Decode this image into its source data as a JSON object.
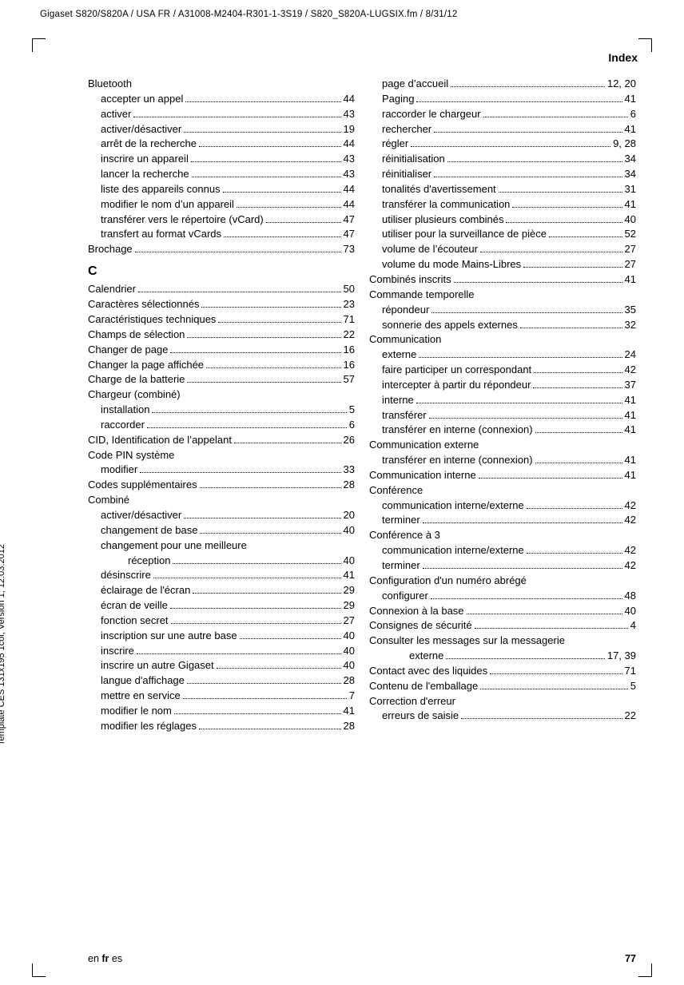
{
  "header": "Gigaset S820/S820A / USA FR / A31008-M2404-R301-1-3S19 / S820_S820A-LUGSIX.fm / 8/31/12",
  "section_title": "Index",
  "spine": "Template CES 131x195 1col, Version 1, 12.03.2012",
  "footer_lang_pre": "en ",
  "footer_lang_bold": "fr",
  "footer_lang_post": " es",
  "footer_page": "77",
  "rows": [
    {
      "kind": "noleader",
      "indent": 0,
      "label": "Bluetooth"
    },
    {
      "kind": "row",
      "indent": 1,
      "label": "accepter un appel",
      "page": "44"
    },
    {
      "kind": "row",
      "indent": 1,
      "label": "activer",
      "page": "43"
    },
    {
      "kind": "row",
      "indent": 1,
      "label": "activer/désactiver",
      "page": "19"
    },
    {
      "kind": "row",
      "indent": 1,
      "label": "arrêt de la recherche",
      "page": "44"
    },
    {
      "kind": "row",
      "indent": 1,
      "label": "inscrire un appareil",
      "page": "43"
    },
    {
      "kind": "row",
      "indent": 1,
      "label": "lancer la recherche",
      "page": "43"
    },
    {
      "kind": "row",
      "indent": 1,
      "label": "liste des appareils connus",
      "page": "44"
    },
    {
      "kind": "row",
      "indent": 1,
      "label": "modifier le nom d’un appareil",
      "page": "44"
    },
    {
      "kind": "row",
      "indent": 1,
      "label": "transférer vers le répertoire (vCard)",
      "page": "47"
    },
    {
      "kind": "row",
      "indent": 1,
      "label": "transfert au format vCards",
      "page": "47"
    },
    {
      "kind": "row",
      "indent": 0,
      "label": "Brochage",
      "page": "73"
    },
    {
      "kind": "letter",
      "label": "C"
    },
    {
      "kind": "row",
      "indent": 0,
      "label": "Calendrier",
      "page": "50"
    },
    {
      "kind": "row",
      "indent": 0,
      "label": "Caractères sélectionnés",
      "page": "23"
    },
    {
      "kind": "row",
      "indent": 0,
      "label": "Caractéristiques techniques",
      "page": "71"
    },
    {
      "kind": "row",
      "indent": 0,
      "label": "Champs de sélection",
      "page": "22"
    },
    {
      "kind": "row",
      "indent": 0,
      "label": "Changer de page",
      "page": "16"
    },
    {
      "kind": "row",
      "indent": 0,
      "label": "Changer la page affichée",
      "page": "16"
    },
    {
      "kind": "row",
      "indent": 0,
      "label": "Charge de la batterie",
      "page": "57"
    },
    {
      "kind": "noleader",
      "indent": 0,
      "label": "Chargeur (combiné)"
    },
    {
      "kind": "row",
      "indent": 1,
      "label": "installation",
      "page": "5"
    },
    {
      "kind": "row",
      "indent": 1,
      "label": "raccorder",
      "page": "6"
    },
    {
      "kind": "row",
      "indent": 0,
      "label": "CID, Identification de l’appelant",
      "page": "26"
    },
    {
      "kind": "noleader",
      "indent": 0,
      "label": "Code PIN système"
    },
    {
      "kind": "row",
      "indent": 1,
      "label": "modifier",
      "page": "33"
    },
    {
      "kind": "row",
      "indent": 0,
      "label": "Codes supplémentaires",
      "page": "28"
    },
    {
      "kind": "noleader",
      "indent": 0,
      "label": "Combiné"
    },
    {
      "kind": "row",
      "indent": 1,
      "label": "activer/désactiver",
      "page": "20"
    },
    {
      "kind": "row",
      "indent": 1,
      "label": "changement de base",
      "page": "40"
    },
    {
      "kind": "noleader",
      "indent": 1,
      "label": "changement pour une meilleure"
    },
    {
      "kind": "row",
      "indent": 2,
      "label": "réception",
      "page": "40"
    },
    {
      "kind": "row",
      "indent": 1,
      "label": "désinscrire",
      "page": "41"
    },
    {
      "kind": "row",
      "indent": 1,
      "label": "éclairage de l'écran",
      "page": "29"
    },
    {
      "kind": "row",
      "indent": 1,
      "label": "écran de veille",
      "page": "29"
    },
    {
      "kind": "row",
      "indent": 1,
      "label": "fonction secret",
      "page": "27"
    },
    {
      "kind": "row",
      "indent": 1,
      "label": "inscription sur une autre base",
      "page": "40"
    },
    {
      "kind": "row",
      "indent": 1,
      "label": "inscrire",
      "page": "40"
    },
    {
      "kind": "row",
      "indent": 1,
      "label": "inscrire un autre Gigaset",
      "page": "40"
    },
    {
      "kind": "row",
      "indent": 1,
      "label": "langue d'affichage",
      "page": "28"
    },
    {
      "kind": "row",
      "indent": 1,
      "label": "mettre en service",
      "page": "7"
    },
    {
      "kind": "row",
      "indent": 1,
      "label": "modifier le nom",
      "page": "41"
    },
    {
      "kind": "row",
      "indent": 1,
      "label": "modifier les réglages",
      "page": "28"
    },
    {
      "kind": "row",
      "indent": 1,
      "label": "page d’accueil",
      "page": "12, 20"
    },
    {
      "kind": "row",
      "indent": 1,
      "label": "Paging",
      "page": "41"
    },
    {
      "kind": "row",
      "indent": 1,
      "label": "raccorder le chargeur",
      "page": "6"
    },
    {
      "kind": "row",
      "indent": 1,
      "label": "rechercher",
      "page": "41"
    },
    {
      "kind": "row",
      "indent": 1,
      "label": "régler",
      "page": "9, 28"
    },
    {
      "kind": "row",
      "indent": 1,
      "label": "réinitialisation",
      "page": "34"
    },
    {
      "kind": "row",
      "indent": 1,
      "label": "réinitialiser",
      "page": "34"
    },
    {
      "kind": "row",
      "indent": 1,
      "label": "tonalités d'avertissement",
      "page": "31"
    },
    {
      "kind": "row",
      "indent": 1,
      "label": "transférer la communication",
      "page": "41"
    },
    {
      "kind": "row",
      "indent": 1,
      "label": "utiliser plusieurs combinés",
      "page": "40"
    },
    {
      "kind": "row",
      "indent": 1,
      "label": "utiliser pour la surveillance de pièce",
      "page": "52"
    },
    {
      "kind": "row",
      "indent": 1,
      "label": "volume de l’écouteur",
      "page": "27"
    },
    {
      "kind": "row",
      "indent": 1,
      "label": "volume du mode Mains-Libres",
      "page": "27"
    },
    {
      "kind": "row",
      "indent": 0,
      "label": "Combinés inscrits",
      "page": "41"
    },
    {
      "kind": "noleader",
      "indent": 0,
      "label": "Commande temporelle"
    },
    {
      "kind": "row",
      "indent": 1,
      "label": "répondeur",
      "page": "35"
    },
    {
      "kind": "row",
      "indent": 1,
      "label": "sonnerie des appels externes",
      "page": "32"
    },
    {
      "kind": "noleader",
      "indent": 0,
      "label": "Communication"
    },
    {
      "kind": "row",
      "indent": 1,
      "label": "externe",
      "page": "24"
    },
    {
      "kind": "row",
      "indent": 1,
      "label": "faire participer un correspondant",
      "page": "42"
    },
    {
      "kind": "row",
      "indent": 1,
      "label": "intercepter à partir du répondeur",
      "page": "37"
    },
    {
      "kind": "row",
      "indent": 1,
      "label": "interne",
      "page": "41"
    },
    {
      "kind": "row",
      "indent": 1,
      "label": "transférer",
      "page": "41"
    },
    {
      "kind": "row",
      "indent": 1,
      "label": "transférer en interne (connexion)",
      "page": "41"
    },
    {
      "kind": "noleader",
      "indent": 0,
      "label": "Communication externe"
    },
    {
      "kind": "row",
      "indent": 1,
      "label": "transférer en interne (connexion)",
      "page": "41"
    },
    {
      "kind": "row",
      "indent": 0,
      "label": "Communication interne",
      "page": "41"
    },
    {
      "kind": "noleader",
      "indent": 0,
      "label": "Conférence"
    },
    {
      "kind": "row",
      "indent": 1,
      "label": "communication interne/externe",
      "page": "42"
    },
    {
      "kind": "row",
      "indent": 1,
      "label": "terminer",
      "page": "42"
    },
    {
      "kind": "noleader",
      "indent": 0,
      "label": "Conférence à 3"
    },
    {
      "kind": "row",
      "indent": 1,
      "label": "communication interne/externe",
      "page": "42"
    },
    {
      "kind": "row",
      "indent": 1,
      "label": "terminer",
      "page": "42"
    },
    {
      "kind": "noleader",
      "indent": 0,
      "label": "Configuration d'un numéro abrégé"
    },
    {
      "kind": "row",
      "indent": 1,
      "label": "configurer",
      "page": "48"
    },
    {
      "kind": "row",
      "indent": 0,
      "label": "Connexion à la base",
      "page": "40"
    },
    {
      "kind": "row",
      "indent": 0,
      "label": "Consignes de sécurité",
      "page": "4"
    },
    {
      "kind": "noleader",
      "indent": 0,
      "label": "Consulter les messages sur la messagerie"
    },
    {
      "kind": "row",
      "indent": 2,
      "label": "externe",
      "page": "17, 39"
    },
    {
      "kind": "row",
      "indent": 0,
      "label": "Contact avec des liquides",
      "page": "71"
    },
    {
      "kind": "row",
      "indent": 0,
      "label": "Contenu de l'emballage",
      "page": "5"
    },
    {
      "kind": "noleader",
      "indent": 0,
      "label": "Correction d'erreur"
    },
    {
      "kind": "row",
      "indent": 1,
      "label": "erreurs de saisie",
      "page": "22"
    }
  ]
}
